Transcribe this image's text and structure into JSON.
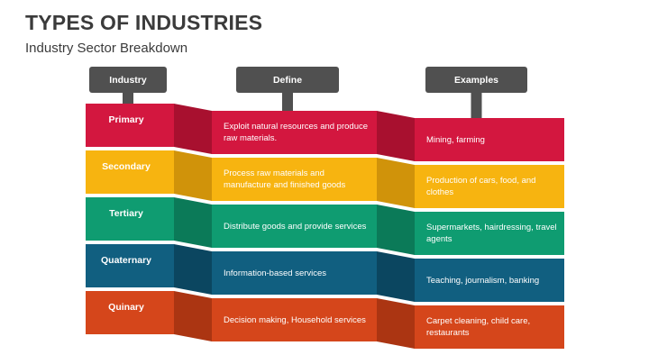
{
  "title": "TYPES OF INDUSTRIES",
  "subtitle": "Industry Sector Breakdown",
  "headers": [
    "Industry",
    "Define",
    "Examples"
  ],
  "header_color": "#505050",
  "rows": [
    {
      "industry": "Primary",
      "define": "Exploit natural resources and produce raw materials.",
      "examples": "Mining, farming",
      "color": "#d3173f",
      "fold_color": "#a8102f"
    },
    {
      "industry": "Secondary",
      "define": "Process raw materials and manufacture and finished goods",
      "examples": "Production of cars, food, and clothes",
      "color": "#f7b410",
      "fold_color": "#d0930a"
    },
    {
      "industry": "Tertiary",
      "define": "Distribute goods and provide services",
      "examples": "Supermarkets, hairdressing, travel agents",
      "color": "#0f9c71",
      "fold_color": "#0b7a58"
    },
    {
      "industry": "Quaternary",
      "define": "Information-based services",
      "examples": "Teaching, journalism, banking",
      "color": "#115f80",
      "fold_color": "#0b4660"
    },
    {
      "industry": "Quinary",
      "define": "Decision making, Household services",
      "examples": "Carpet cleaning, child care, restaurants",
      "color": "#d5461b",
      "fold_color": "#ab3512"
    }
  ]
}
